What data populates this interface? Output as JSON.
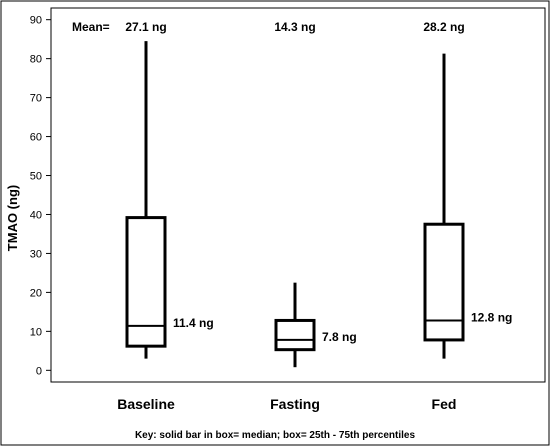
{
  "chart_data": {
    "type": "boxplot",
    "ylabel": "TMAO (ng)",
    "ylim": [
      -3,
      93
    ],
    "yticks": [
      0,
      10,
      20,
      30,
      40,
      50,
      60,
      70,
      80,
      90
    ],
    "categories": [
      "Baseline",
      "Fasting",
      "Fed"
    ],
    "boxes": [
      {
        "category": "Baseline",
        "min": 3,
        "q1": 6.2,
        "median": 11.4,
        "q3": 39.2,
        "max": 84.5,
        "mean_label": "27.1 ng",
        "median_label": "11.4 ng"
      },
      {
        "category": "Fasting",
        "min": 0.8,
        "q1": 5.3,
        "median": 7.8,
        "q3": 12.8,
        "max": 22.5,
        "mean_label": "14.3 ng",
        "median_label": "7.8 ng"
      },
      {
        "category": "Fed",
        "min": 3,
        "q1": 7.8,
        "median": 12.8,
        "q3": 37.5,
        "max": 81.3,
        "mean_label": "28.2 ng",
        "median_label": "12.8 ng"
      }
    ],
    "mean_prefix": "Mean=",
    "footnote": "Key: solid bar in box= median;   box= 25th - 75th percentiles",
    "grid": false
  }
}
